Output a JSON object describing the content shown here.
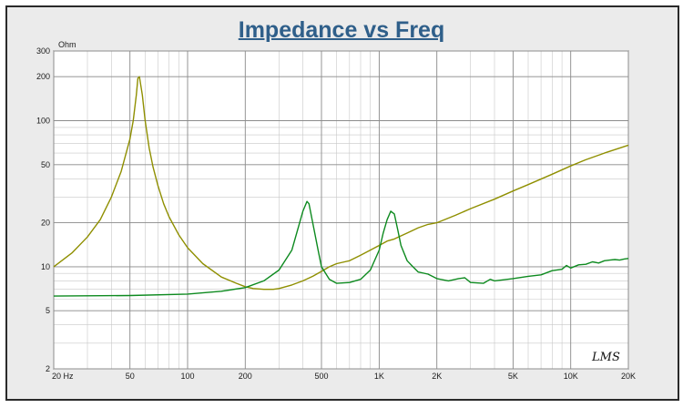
{
  "chart_data": {
    "type": "line",
    "title": "Impedance vs Freq",
    "ylabel": "Ohm",
    "xlabel": "",
    "x_scale": "log",
    "y_scale": "log",
    "xlim": [
      20,
      20000
    ],
    "ylim": [
      2,
      300
    ],
    "grid": true,
    "x_ticks": [
      {
        "value": 20,
        "label": "20  Hz"
      },
      {
        "value": 50,
        "label": "50"
      },
      {
        "value": 100,
        "label": "100"
      },
      {
        "value": 200,
        "label": "200"
      },
      {
        "value": 500,
        "label": "500"
      },
      {
        "value": 1000,
        "label": "1K"
      },
      {
        "value": 2000,
        "label": "2K"
      },
      {
        "value": 5000,
        "label": "5K"
      },
      {
        "value": 10000,
        "label": "10K"
      },
      {
        "value": 20000,
        "label": "20K"
      }
    ],
    "y_ticks": [
      {
        "value": 2,
        "label": "2"
      },
      {
        "value": 5,
        "label": "5"
      },
      {
        "value": 10,
        "label": "10"
      },
      {
        "value": 20,
        "label": "20"
      },
      {
        "value": 50,
        "label": "50"
      },
      {
        "value": 100,
        "label": "100"
      },
      {
        "value": 200,
        "label": "200"
      },
      {
        "value": 300,
        "label": "300"
      }
    ],
    "series": [
      {
        "color": "#8f8f00",
        "x": [
          20,
          25,
          30,
          35,
          40,
          45,
          50,
          52,
          54,
          55,
          56,
          58,
          60,
          63,
          66,
          70,
          75,
          80,
          90,
          100,
          120,
          150,
          180,
          200,
          220,
          250,
          280,
          300,
          350,
          400,
          450,
          500,
          550,
          600,
          700,
          800,
          900,
          1000,
          1100,
          1200,
          1400,
          1600,
          1800,
          2000,
          2500,
          3000,
          4000,
          5000,
          6000,
          8000,
          10000,
          12000,
          15000,
          20000
        ],
        "y": [
          10,
          12.5,
          16,
          21,
          30,
          45,
          75,
          100,
          150,
          195,
          200,
          150,
          100,
          65,
          48,
          36,
          27,
          22,
          16.5,
          13.5,
          10.5,
          8.5,
          7.7,
          7.3,
          7.1,
          7,
          7,
          7.1,
          7.5,
          8,
          8.6,
          9.3,
          10,
          10.5,
          11,
          12,
          13,
          14,
          15,
          15.5,
          17,
          18.5,
          19.5,
          20,
          22.5,
          25,
          29,
          33,
          36.5,
          43,
          49,
          54,
          60,
          68
        ]
      },
      {
        "color": "#0d8a1f",
        "x": [
          20,
          50,
          100,
          150,
          200,
          250,
          300,
          350,
          380,
          400,
          420,
          430,
          450,
          480,
          500,
          550,
          600,
          700,
          800,
          900,
          1000,
          1050,
          1100,
          1150,
          1200,
          1250,
          1300,
          1400,
          1500,
          1600,
          1800,
          2000,
          2300,
          2600,
          2800,
          3000,
          3500,
          3800,
          4000,
          5000,
          6000,
          7000,
          8000,
          9000,
          9500,
          10000,
          11000,
          12000,
          13000,
          14000,
          15000,
          16000,
          17000,
          18000,
          19000,
          20000
        ],
        "y": [
          6.3,
          6.35,
          6.5,
          6.8,
          7.2,
          8,
          9.5,
          13,
          19,
          24,
          28,
          27,
          20,
          13,
          10,
          8.2,
          7.7,
          7.8,
          8.2,
          9.5,
          13,
          17,
          21,
          24,
          23,
          18,
          14,
          11,
          10,
          9.2,
          8.9,
          8.3,
          8,
          8.3,
          8.4,
          7.8,
          7.7,
          8.2,
          8,
          8.3,
          8.6,
          8.8,
          9.4,
          9.6,
          10.2,
          9.8,
          10.3,
          10.4,
          10.8,
          10.6,
          11,
          11.1,
          11.2,
          11.1,
          11.3,
          11.4
        ]
      }
    ]
  },
  "logo_text": "LMS"
}
